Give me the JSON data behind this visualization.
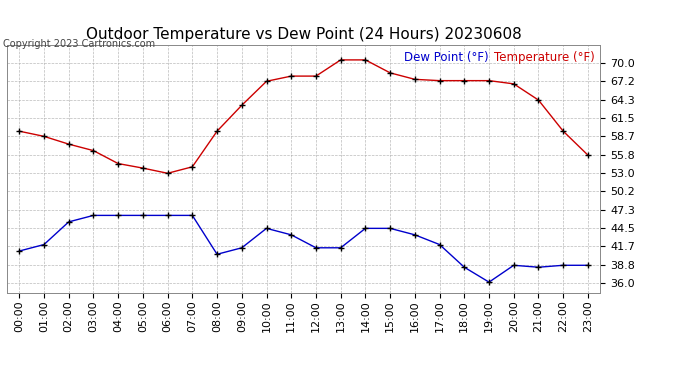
{
  "title": "Outdoor Temperature vs Dew Point (24 Hours) 20230608",
  "copyright": "Copyright 2023 Cartronics.com",
  "legend_dew": "Dew Point (°F)",
  "legend_temp": "Temperature (°F)",
  "hours": [
    "00:00",
    "01:00",
    "02:00",
    "03:00",
    "04:00",
    "05:00",
    "06:00",
    "07:00",
    "08:00",
    "09:00",
    "10:00",
    "11:00",
    "12:00",
    "13:00",
    "14:00",
    "15:00",
    "16:00",
    "17:00",
    "18:00",
    "19:00",
    "20:00",
    "21:00",
    "22:00",
    "23:00"
  ],
  "temperature": [
    59.5,
    58.7,
    57.5,
    56.5,
    54.5,
    53.8,
    53.0,
    54.0,
    59.5,
    63.5,
    67.2,
    68.0,
    68.0,
    70.5,
    70.5,
    68.5,
    67.5,
    67.3,
    67.3,
    67.3,
    66.8,
    64.3,
    59.5,
    55.8
  ],
  "dew_point": [
    41.0,
    42.0,
    45.5,
    46.5,
    46.5,
    46.5,
    46.5,
    46.5,
    40.5,
    41.5,
    44.5,
    43.5,
    41.5,
    41.5,
    44.5,
    44.5,
    43.5,
    42.0,
    38.5,
    36.2,
    38.8,
    38.5,
    38.8,
    38.8
  ],
  "ylim_min": 34.6,
  "ylim_max": 72.8,
  "yticks": [
    36.0,
    38.8,
    41.7,
    44.5,
    47.3,
    50.2,
    53.0,
    55.8,
    58.7,
    61.5,
    64.3,
    67.2,
    70.0
  ],
  "temp_color": "#cc0000",
  "dew_color": "#0000cc",
  "marker_color": "#000000",
  "bg_color": "#ffffff",
  "grid_color": "#aaaaaa",
  "title_fontsize": 11,
  "tick_fontsize": 8,
  "copyright_fontsize": 7,
  "legend_fontsize": 8.5
}
